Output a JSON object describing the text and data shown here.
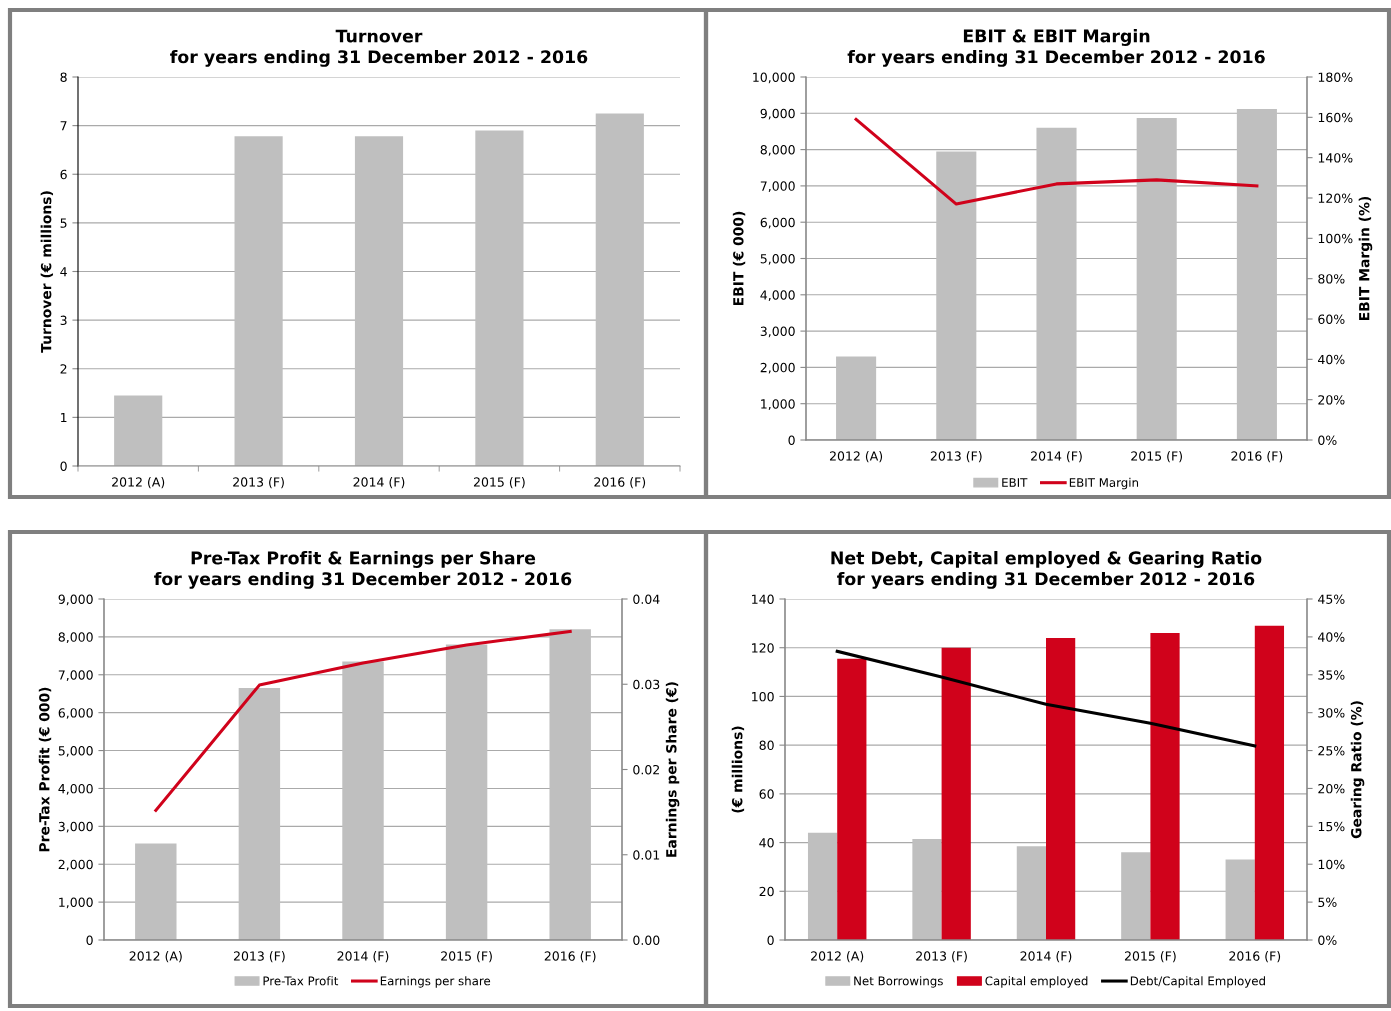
{
  "chart_data": [
    {
      "type": "bar",
      "title": "Turnover\nfor years ending 31 December 2012 - 2016",
      "ylabel": "Turnover (€ millions)",
      "categories": [
        "2012 (A)",
        "2013 (F)",
        "2014 (F)",
        "2015 (F)",
        "2016 (F)"
      ],
      "series": [
        {
          "color": "#bfbfbf",
          "values": [
            1.45,
            6.78,
            6.78,
            6.9,
            7.25
          ]
        }
      ],
      "ylim": [
        0,
        8
      ],
      "yticks": [
        0,
        1,
        2,
        3,
        4,
        5,
        6,
        7,
        8
      ],
      "grid": "y"
    },
    {
      "type": "bar",
      "title": "EBIT & EBIT Margin\nfor years ending 31 December 2012 - 2016",
      "ylabel": "EBIT (€ 000)",
      "y2label": "EBIT Margin (%)",
      "categories": [
        "2012 (A)",
        "2013 (F)",
        "2014 (F)",
        "2015 (F)",
        "2016 (F)"
      ],
      "series": [
        {
          "name": "EBIT",
          "color": "#bfbfbf",
          "values": [
            2300,
            7950,
            8600,
            8870,
            9120
          ]
        },
        {
          "name": "EBIT Margin",
          "type": "line",
          "axis": "y2",
          "color": "#d0021b",
          "values": [
            159,
            117,
            127,
            129,
            126
          ]
        }
      ],
      "ylim": [
        0,
        10000
      ],
      "yticks": [
        0,
        {
          "value": 1000,
          "label": "1,000"
        },
        {
          "value": 2000,
          "label": "2,000"
        },
        {
          "value": 3000,
          "label": "3,000"
        },
        {
          "value": 4000,
          "label": "4,000"
        },
        {
          "value": 5000,
          "label": "5,000"
        },
        {
          "value": 6000,
          "label": "6,000"
        },
        {
          "value": 7000,
          "label": "7,000"
        },
        {
          "value": 8000,
          "label": "8,000"
        },
        {
          "value": 9000,
          "label": "9,000"
        },
        {
          "value": 10000,
          "label": "10,000"
        }
      ],
      "y2lim": [
        0,
        180
      ],
      "y2ticks": [
        {
          "value": 0,
          "label": "0%"
        },
        {
          "value": 20,
          "label": "20%"
        },
        {
          "value": 40,
          "label": "40%"
        },
        {
          "value": 60,
          "label": "60%"
        },
        {
          "value": 80,
          "label": "80%"
        },
        {
          "value": 100,
          "label": "100%"
        },
        {
          "value": 120,
          "label": "120%"
        },
        {
          "value": 140,
          "label": "140%"
        },
        {
          "value": 160,
          "label": "160%"
        },
        {
          "value": 180,
          "label": "180%"
        }
      ],
      "grid": "y",
      "legend": "bottom"
    },
    {
      "type": "bar",
      "title": "Pre-Tax Profit & Earnings per Share\nfor years ending 31 December 2012 - 2016",
      "ylabel": "Pre-Tax Profit (€ 000)",
      "y2label": "Earnings per Share (€)",
      "categories": [
        "2012 (A)",
        "2013 (F)",
        "2014 (F)",
        "2015 (F)",
        "2016 (F)"
      ],
      "series": [
        {
          "name": "Pre-Tax Profit",
          "color": "#bfbfbf",
          "values": [
            2550,
            6650,
            7350,
            7800,
            8200
          ]
        },
        {
          "name": "Earnings per share",
          "type": "line",
          "axis": "y2",
          "color": "#d0021b",
          "values": [
            0.0152,
            0.0299,
            0.0325,
            0.0346,
            0.0362
          ]
        }
      ],
      "ylim": [
        0,
        9000
      ],
      "yticks": [
        0,
        {
          "value": 1000,
          "label": "1,000"
        },
        {
          "value": 2000,
          "label": "2,000"
        },
        {
          "value": 3000,
          "label": "3,000"
        },
        {
          "value": 4000,
          "label": "4,000"
        },
        {
          "value": 5000,
          "label": "5,000"
        },
        {
          "value": 6000,
          "label": "6,000"
        },
        {
          "value": 7000,
          "label": "7,000"
        },
        {
          "value": 8000,
          "label": "8,000"
        },
        {
          "value": 9000,
          "label": "9,000"
        }
      ],
      "y2lim": [
        0,
        0.04
      ],
      "y2ticks": [
        {
          "value": 0,
          "label": "0.00"
        },
        0.01,
        0.02,
        0.03,
        0.04
      ],
      "grid": "y",
      "legend": "bottom"
    },
    {
      "type": "bar",
      "title": "Net Debt, Capital employed & Gearing Ratio\nfor years ending 31 December 2012 - 2016",
      "ylabel": "(€ millions)",
      "y2label": "Gearing Ratio (%)",
      "categories": [
        "2012 (A)",
        "2013 (F)",
        "2014 (F)",
        "2015 (F)",
        "2016 (F)"
      ],
      "series": [
        {
          "name": "Net Borrowings",
          "color": "#bfbfbf",
          "values": [
            44,
            41.5,
            38.5,
            36,
            33
          ]
        },
        {
          "name": "Capital employed",
          "color": "#d0021b",
          "values": [
            115.5,
            120,
            124,
            126,
            129
          ]
        },
        {
          "name": "Debt/Capital Employed",
          "type": "line",
          "axis": "y2",
          "color": "#000000",
          "values": [
            38.1,
            34.7,
            31.1,
            28.6,
            25.6
          ]
        }
      ],
      "ylim": [
        0,
        140
      ],
      "yticks": [
        0,
        20,
        40,
        60,
        80,
        100,
        120,
        140
      ],
      "y2lim": [
        0,
        45
      ],
      "y2ticks": [
        {
          "value": 0,
          "label": "0%"
        },
        {
          "value": 5,
          "label": "5%"
        },
        {
          "value": 10,
          "label": "10%"
        },
        {
          "value": 15,
          "label": "15%"
        },
        {
          "value": 20,
          "label": "20%"
        },
        {
          "value": 25,
          "label": "25%"
        },
        {
          "value": 30,
          "label": "30%"
        },
        {
          "value": 35,
          "label": "35%"
        },
        {
          "value": 40,
          "label": "40%"
        },
        {
          "value": 45,
          "label": "45%"
        }
      ],
      "grid": "y",
      "legend": "bottom"
    }
  ]
}
